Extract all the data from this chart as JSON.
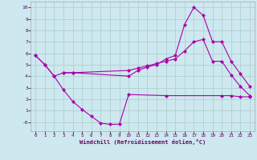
{
  "xlabel": "Windchill (Refroidissement éolien,°C)",
  "bg_color": "#cde8ee",
  "grid_color": "#aacccc",
  "line_color": "#aa00aa",
  "xlim": [
    -0.5,
    23.5
  ],
  "ylim": [
    -0.8,
    10.5
  ],
  "xticks": [
    0,
    1,
    2,
    3,
    4,
    5,
    6,
    7,
    8,
    9,
    10,
    11,
    12,
    13,
    14,
    15,
    16,
    17,
    18,
    19,
    20,
    21,
    22,
    23
  ],
  "yticks": [
    0,
    1,
    2,
    3,
    4,
    5,
    6,
    7,
    8,
    9,
    10
  ],
  "ytick_labels": [
    "-0",
    "1",
    "2",
    "3",
    "4",
    "5",
    "6",
    "7",
    "8",
    "9",
    "10"
  ],
  "line1_x": [
    0,
    1,
    2,
    3,
    4,
    10,
    11,
    12,
    13,
    14,
    15,
    16,
    17,
    18,
    19,
    20,
    21,
    22,
    23
  ],
  "line1_y": [
    5.8,
    5.0,
    4.0,
    4.3,
    4.3,
    4.0,
    4.5,
    4.8,
    5.0,
    5.5,
    5.8,
    8.5,
    10.0,
    9.3,
    7.0,
    7.0,
    5.3,
    4.2,
    3.1
  ],
  "line2_x": [
    0,
    1,
    2,
    3,
    4,
    5,
    6,
    7,
    8,
    9,
    10,
    14,
    20,
    21,
    22,
    23
  ],
  "line2_y": [
    5.8,
    5.0,
    4.0,
    2.8,
    1.8,
    1.1,
    0.5,
    -0.1,
    -0.2,
    -0.2,
    2.4,
    2.3,
    2.3,
    2.3,
    2.2,
    2.2
  ],
  "line3_x": [
    3,
    4,
    10,
    11,
    12,
    13,
    14,
    15,
    16,
    17,
    18,
    19,
    20,
    21,
    22,
    23
  ],
  "line3_y": [
    4.3,
    4.3,
    4.5,
    4.7,
    4.9,
    5.1,
    5.3,
    5.5,
    6.2,
    7.0,
    7.2,
    5.3,
    5.3,
    4.1,
    3.1,
    2.3
  ]
}
